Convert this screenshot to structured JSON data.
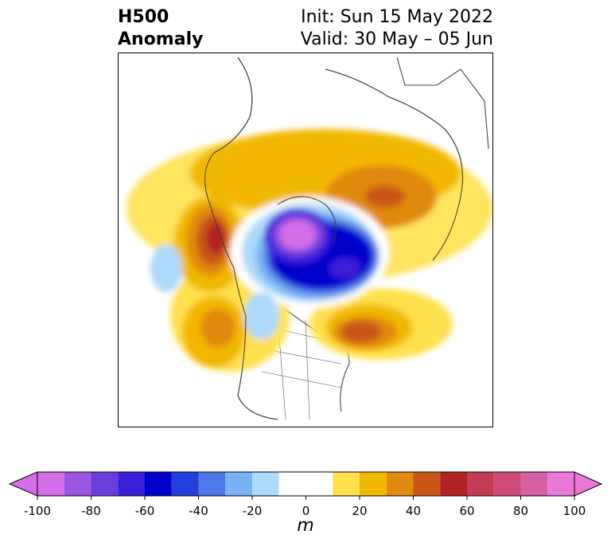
{
  "title": {
    "line1": "H500",
    "line2": "Anomaly",
    "init": "Init: Sun 15 May 2022",
    "valid": "Valid: 30 May – 05 Jun"
  },
  "colorbar": {
    "unit": "m",
    "levels": [
      -100,
      -90,
      -80,
      -70,
      -60,
      -50,
      -40,
      -30,
      -20,
      -10,
      10,
      20,
      30,
      40,
      50,
      60,
      70,
      80,
      90,
      100
    ],
    "colors": [
      "#d56de8",
      "#9c55e0",
      "#6a3ddc",
      "#3a1fd8",
      "#0000cd",
      "#2340dc",
      "#4f78e8",
      "#79b2f2",
      "#add9fb",
      "#ffffff",
      "#ffe14d",
      "#f2b800",
      "#e08a0f",
      "#c95719",
      "#b22222",
      "#c33a55",
      "#cf4b7a",
      "#d760a5",
      "#e879d6"
    ],
    "low_extend_color": "#d56de8",
    "high_extend_color": "#e879d6",
    "tick_labels": [
      "-100",
      "-80",
      "-60",
      "-40",
      "-20",
      "0",
      "20",
      "40",
      "60",
      "80",
      "100"
    ]
  }
}
